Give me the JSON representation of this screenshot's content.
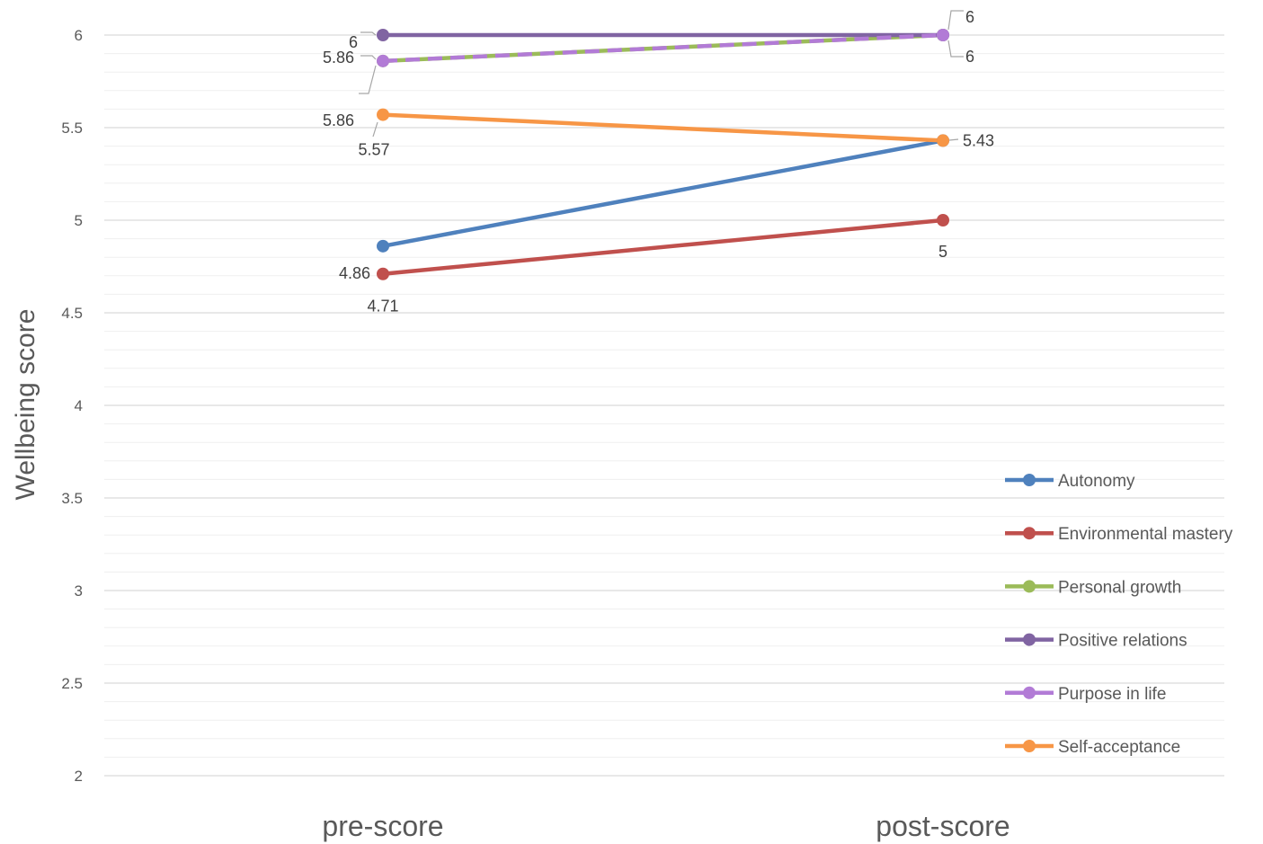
{
  "chart_data": {
    "type": "line",
    "title": "",
    "xlabel": "",
    "ylabel": "Wellbeing score",
    "categories": [
      "pre-score",
      "post-score"
    ],
    "ylim": [
      2,
      6
    ],
    "major_ticks": [
      2,
      2.5,
      3,
      3.5,
      4,
      4.5,
      5,
      5.5,
      6
    ],
    "minor_step": 0.1,
    "grid": true,
    "legend_position": "right",
    "series": [
      {
        "name": "Autonomy",
        "values": [
          4.86,
          5.43
        ],
        "color": "#4F81BD",
        "labels": [
          "4.86",
          "5.43"
        ]
      },
      {
        "name": "Environmental mastery",
        "values": [
          4.71,
          5.0
        ],
        "color": "#C0504D",
        "labels": [
          "4.71",
          "5"
        ]
      },
      {
        "name": "Personal growth",
        "values": [
          5.86,
          6.0
        ],
        "color": "#9BBB59",
        "labels": [
          "5.86",
          "6"
        ]
      },
      {
        "name": "Positive relations",
        "values": [
          6.0,
          6.0
        ],
        "color": "#8064A2",
        "labels": [
          "6",
          "6"
        ]
      },
      {
        "name": "Purpose in life",
        "values": [
          5.86,
          6.0
        ],
        "color": "#B27BD6",
        "dashed": true,
        "labels": [
          "5.86",
          ""
        ]
      },
      {
        "name": "Self-acceptance",
        "values": [
          5.57,
          5.43
        ],
        "color": "#F79646",
        "labels": [
          "5.57",
          ""
        ]
      }
    ]
  }
}
